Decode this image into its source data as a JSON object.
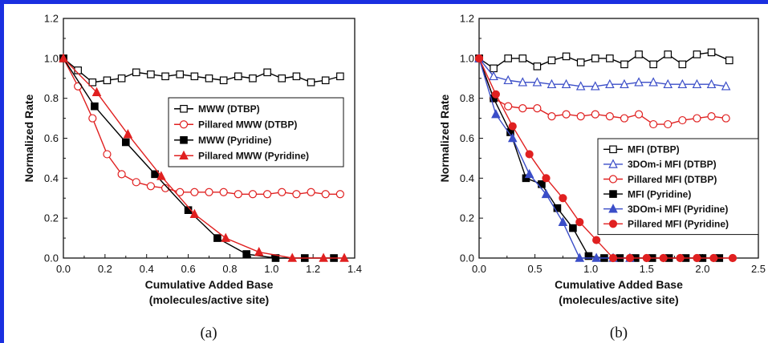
{
  "chart_data": [
    {
      "type": "line",
      "panel_label": "(a)",
      "xlabel_line1": "Cumulative Added Base",
      "xlabel_line2": "(molecules/active site)",
      "ylabel": "Normalized Rate",
      "xlim": [
        0,
        1.4
      ],
      "ylim": [
        0,
        1.2
      ],
      "xticks": [
        "0.0",
        "0.2",
        "0.4",
        "0.6",
        "0.8",
        "1.0",
        "1.2",
        "1.4"
      ],
      "yticks": [
        "0.0",
        "0.2",
        "0.4",
        "0.6",
        "0.8",
        "1.0",
        "1.2"
      ],
      "legend_position": "center-right",
      "series": [
        {
          "name": "MWW (DTBP)",
          "color": "#000000",
          "marker": "square-open",
          "x": [
            0,
            0.07,
            0.14,
            0.21,
            0.28,
            0.35,
            0.42,
            0.49,
            0.56,
            0.63,
            0.7,
            0.77,
            0.84,
            0.91,
            0.98,
            1.05,
            1.12,
            1.19,
            1.26,
            1.33
          ],
          "y": [
            1.0,
            0.94,
            0.88,
            0.89,
            0.9,
            0.93,
            0.92,
            0.91,
            0.92,
            0.91,
            0.9,
            0.89,
            0.91,
            0.9,
            0.93,
            0.9,
            0.91,
            0.88,
            0.89,
            0.91
          ]
        },
        {
          "name": "Pillared MWW (DTBP)",
          "color": "#e02020",
          "marker": "circle-open",
          "x": [
            0,
            0.07,
            0.14,
            0.21,
            0.28,
            0.35,
            0.42,
            0.49,
            0.56,
            0.63,
            0.7,
            0.77,
            0.84,
            0.91,
            0.98,
            1.05,
            1.12,
            1.19,
            1.26,
            1.33
          ],
          "y": [
            1.0,
            0.86,
            0.7,
            0.52,
            0.42,
            0.38,
            0.36,
            0.35,
            0.33,
            0.33,
            0.33,
            0.33,
            0.32,
            0.32,
            0.32,
            0.33,
            0.32,
            0.33,
            0.32,
            0.32
          ]
        },
        {
          "name": "MWW (Pyridine)",
          "color": "#000000",
          "marker": "square-filled",
          "x": [
            0,
            0.15,
            0.3,
            0.44,
            0.6,
            0.74,
            0.88,
            1.02,
            1.16,
            1.3
          ],
          "y": [
            1.0,
            0.76,
            0.58,
            0.42,
            0.24,
            0.1,
            0.02,
            0.0,
            0.0,
            0.0
          ]
        },
        {
          "name": "Pillared MWW (Pyridine)",
          "color": "#e02020",
          "marker": "triangle-filled",
          "x": [
            0,
            0.16,
            0.31,
            0.47,
            0.63,
            0.78,
            0.94,
            1.1,
            1.25,
            1.35
          ],
          "y": [
            1.0,
            0.83,
            0.62,
            0.41,
            0.22,
            0.1,
            0.03,
            0.0,
            0.0,
            0.0
          ]
        }
      ]
    },
    {
      "type": "line",
      "panel_label": "(b)",
      "xlabel_line1": "Cumulative Added Base",
      "xlabel_line2": "(molecules/active site)",
      "ylabel": "Normalized Rate",
      "xlim": [
        0,
        2.5
      ],
      "ylim": [
        0,
        1.2
      ],
      "xticks": [
        "0.0",
        "0.5",
        "1.0",
        "1.5",
        "2.0",
        "2.5"
      ],
      "yticks": [
        "0.0",
        "0.2",
        "0.4",
        "0.6",
        "0.8",
        "1.0",
        "1.2"
      ],
      "legend_position": "lower-right",
      "series": [
        {
          "name": "MFI (DTBP)",
          "color": "#000000",
          "marker": "square-open",
          "x": [
            0,
            0.13,
            0.26,
            0.39,
            0.52,
            0.65,
            0.78,
            0.91,
            1.04,
            1.17,
            1.3,
            1.43,
            1.56,
            1.69,
            1.82,
            1.95,
            2.08,
            2.24
          ],
          "y": [
            1.0,
            0.95,
            1.0,
            1.0,
            0.96,
            0.99,
            1.01,
            0.98,
            1.0,
            1.0,
            0.97,
            1.02,
            0.97,
            1.02,
            0.97,
            1.02,
            1.03,
            0.99
          ]
        },
        {
          "name": "3DOm-i MFI (DTBP)",
          "color": "#3b4ec8",
          "marker": "triangle-open",
          "x": [
            0,
            0.13,
            0.26,
            0.39,
            0.52,
            0.65,
            0.78,
            0.91,
            1.04,
            1.17,
            1.3,
            1.43,
            1.56,
            1.69,
            1.82,
            1.95,
            2.08,
            2.21
          ],
          "y": [
            1.0,
            0.91,
            0.89,
            0.88,
            0.88,
            0.87,
            0.87,
            0.86,
            0.86,
            0.87,
            0.87,
            0.88,
            0.88,
            0.87,
            0.87,
            0.87,
            0.87,
            0.86
          ]
        },
        {
          "name": "Pillared MFI (DTBP)",
          "color": "#e02020",
          "marker": "circle-open",
          "x": [
            0,
            0.13,
            0.26,
            0.39,
            0.52,
            0.65,
            0.78,
            0.91,
            1.04,
            1.17,
            1.3,
            1.43,
            1.56,
            1.69,
            1.82,
            1.95,
            2.08,
            2.21
          ],
          "y": [
            1.0,
            0.8,
            0.76,
            0.75,
            0.75,
            0.71,
            0.72,
            0.71,
            0.72,
            0.71,
            0.7,
            0.72,
            0.67,
            0.67,
            0.69,
            0.7,
            0.71,
            0.7
          ]
        },
        {
          "name": "MFI (Pyridine)",
          "color": "#000000",
          "marker": "square-filled",
          "x": [
            0,
            0.13,
            0.28,
            0.42,
            0.56,
            0.7,
            0.84,
            0.98,
            1.12,
            1.26,
            1.4,
            1.55,
            1.7,
            1.85,
            2.0,
            2.15
          ],
          "y": [
            1.0,
            0.8,
            0.63,
            0.4,
            0.37,
            0.25,
            0.15,
            0.01,
            0.0,
            0.0,
            0.0,
            0.0,
            0.0,
            0.0,
            0.0,
            0.0
          ]
        },
        {
          "name": "3DOm-i MFI (Pyridine)",
          "color": "#3b4ec8",
          "marker": "triangle-filled",
          "x": [
            0,
            0.15,
            0.3,
            0.45,
            0.6,
            0.75,
            0.9,
            1.05,
            1.2,
            1.35
          ],
          "y": [
            1.0,
            0.72,
            0.6,
            0.42,
            0.32,
            0.18,
            0.0,
            0.0,
            0.0,
            0.0
          ]
        },
        {
          "name": "Pillared MFI (Pyridine)",
          "color": "#e02020",
          "marker": "circle-filled",
          "x": [
            0,
            0.15,
            0.3,
            0.45,
            0.6,
            0.75,
            0.9,
            1.05,
            1.2,
            1.35,
            1.5,
            1.65,
            1.8,
            1.95,
            2.1,
            2.27
          ],
          "y": [
            1.0,
            0.82,
            0.66,
            0.52,
            0.4,
            0.3,
            0.18,
            0.09,
            0.0,
            0.0,
            0.0,
            0.0,
            0.0,
            0.0,
            0.0,
            0.0
          ]
        }
      ]
    }
  ]
}
